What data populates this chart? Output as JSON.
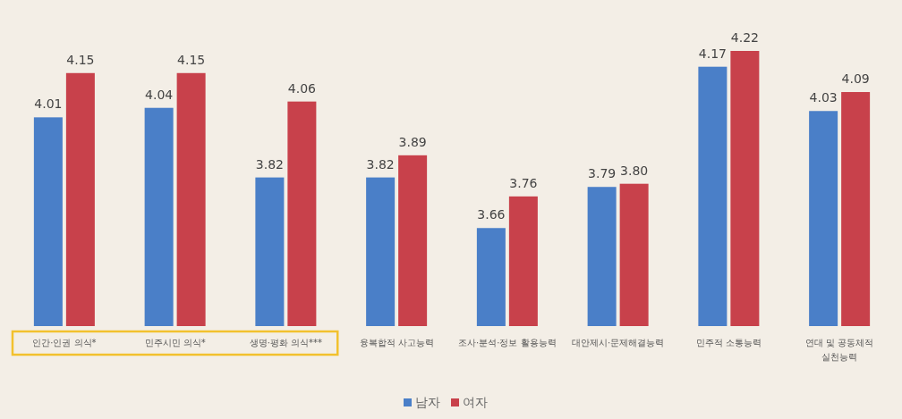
{
  "chart_data": {
    "type": "bar",
    "categories": [
      "인간·인권 의식*",
      "민주시민 의식*",
      "생명·평화 의식***",
      "융복합적 사고능력",
      "조사·분석·정보 활용능력",
      "대안제시·문제해결능력",
      "민주적 소통능력",
      "연대 및 공동체적 실천능력"
    ],
    "series": [
      {
        "name": "남자",
        "color": "#4a7fc8",
        "values": [
          4.01,
          4.04,
          3.82,
          3.82,
          3.66,
          3.79,
          4.17,
          4.03
        ],
        "value_labels": [
          "4.01",
          "4.04",
          "3.82",
          "3.82",
          "3.66",
          "3.79",
          "4.17",
          "4.03"
        ]
      },
      {
        "name": "여자",
        "color": "#c8414b",
        "values": [
          4.15,
          4.15,
          4.06,
          3.89,
          3.76,
          3.8,
          4.22,
          4.09
        ],
        "value_labels": [
          "4.15",
          "4.15",
          "4.06",
          "3.89",
          "3.76",
          "3.80",
          "4.22",
          "4.09"
        ]
      }
    ],
    "ylim": [
      3.35,
      4.22
    ],
    "tick_labels": "x",
    "legend": "bottom"
  }
}
